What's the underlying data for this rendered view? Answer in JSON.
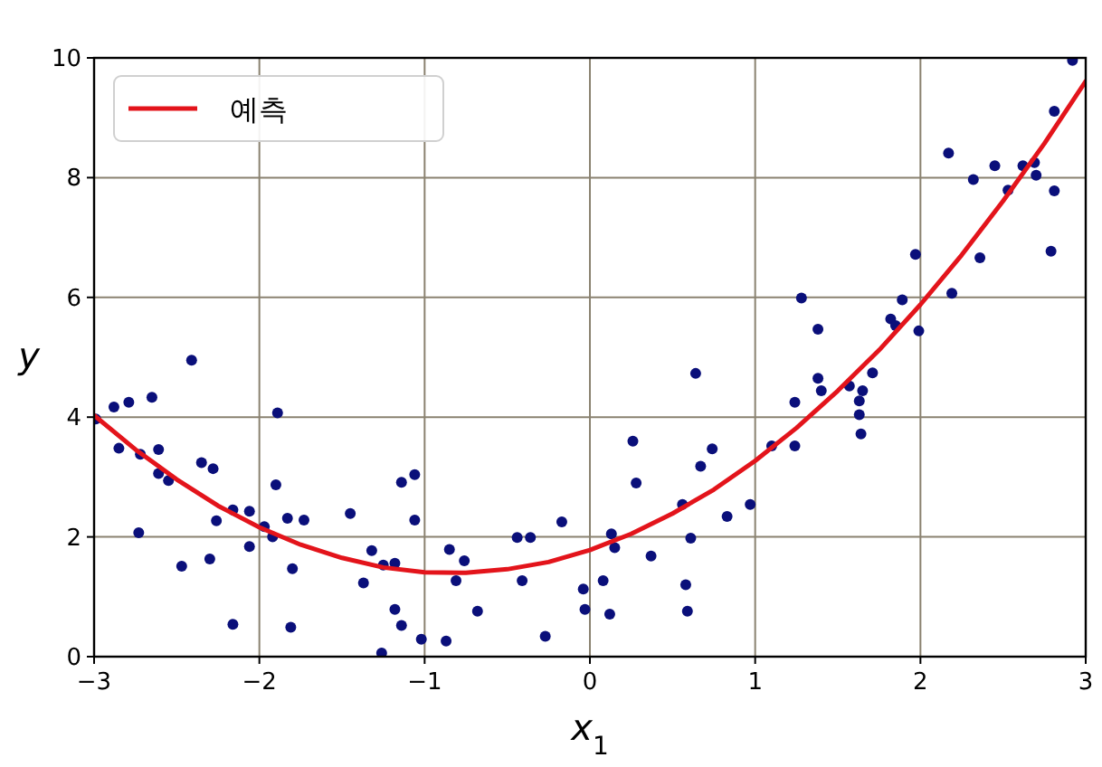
{
  "chart_data": {
    "type": "scatter",
    "xlabel": "x$_{1}$",
    "ylabel": "y",
    "xlim": [
      -3,
      3
    ],
    "ylim": [
      0,
      10
    ],
    "xticks": [
      {
        "value": -3,
        "label": "−3"
      },
      {
        "value": -2,
        "label": "−2"
      },
      {
        "value": -1,
        "label": "−1"
      },
      0,
      1,
      2,
      3
    ],
    "yticks": [
      0,
      2,
      4,
      6,
      8,
      10
    ],
    "grid": true,
    "legend": "top left",
    "series": [
      {
        "color": "#0a0f7a",
        "marker": "circle",
        "x": [
          -2.99,
          -2.88,
          -2.79,
          -2.65,
          -2.41,
          -1.89,
          -2.85,
          -2.72,
          -2.61,
          -2.61,
          -2.55,
          -2.73,
          -2.35,
          -2.28,
          -2.26,
          -2.47,
          -2.3,
          -2.16,
          -2.06,
          -2.16,
          -2.06,
          -1.9,
          -1.97,
          -1.92,
          -1.83,
          -1.8,
          -1.73,
          -1.81,
          -1.45,
          -1.37,
          -1.32,
          -1.25,
          -1.18,
          -1.18,
          -1.14,
          -1.26,
          -1.14,
          -1.06,
          -1.06,
          -1.02,
          -0.87,
          -0.85,
          -0.81,
          -0.76,
          -0.68,
          -0.44,
          -0.36,
          -0.41,
          -0.27,
          -0.17,
          -0.04,
          -0.03,
          0.08,
          0.12,
          0.13,
          0.15,
          0.26,
          0.28,
          0.37,
          0.64,
          0.56,
          0.61,
          0.58,
          0.59,
          0.67,
          0.74,
          0.83,
          0.97,
          1.1,
          1.24,
          1.24,
          1.28,
          1.38,
          1.38,
          1.4,
          1.57,
          1.63,
          1.63,
          1.64,
          1.65,
          1.71,
          1.82,
          1.85,
          1.89,
          1.99,
          1.97,
          2.19,
          2.17,
          2.32,
          2.36,
          2.45,
          2.53,
          2.62,
          2.69,
          2.7,
          2.81,
          2.79,
          2.81,
          2.92
        ],
        "values": [
          3.97,
          4.17,
          4.25,
          4.33,
          4.95,
          4.07,
          3.48,
          3.38,
          3.46,
          3.06,
          2.94,
          2.07,
          3.24,
          3.14,
          2.27,
          1.51,
          1.63,
          2.45,
          2.43,
          0.54,
          1.84,
          2.87,
          2.17,
          2.0,
          2.31,
          1.47,
          2.28,
          0.49,
          2.39,
          1.23,
          1.77,
          1.53,
          1.56,
          0.79,
          0.52,
          0.06,
          2.91,
          3.04,
          2.28,
          0.29,
          0.26,
          1.79,
          1.27,
          1.6,
          0.76,
          1.99,
          1.99,
          1.27,
          0.34,
          2.25,
          1.13,
          0.79,
          1.27,
          0.71,
          2.05,
          1.82,
          3.6,
          2.9,
          1.68,
          4.73,
          2.54,
          1.98,
          1.2,
          0.76,
          3.18,
          3.47,
          2.34,
          2.54,
          3.52,
          3.52,
          4.25,
          5.99,
          5.47,
          4.65,
          4.44,
          4.52,
          4.27,
          4.04,
          3.72,
          4.44,
          4.74,
          5.64,
          5.53,
          5.96,
          5.44,
          6.72,
          6.07,
          8.41,
          7.97,
          6.66,
          8.2,
          7.79,
          8.2,
          8.25,
          8.04,
          7.78,
          6.77,
          9.11,
          9.96
        ]
      },
      {
        "type": "line",
        "name": "예측",
        "color": "#e3141b",
        "marker": "none",
        "line_style": "solid",
        "x": [
          -3,
          -2.75,
          -2.5,
          -2.25,
          -2,
          -1.75,
          -1.5,
          -1.25,
          -1,
          -0.75,
          -0.5,
          -0.25,
          0,
          0.25,
          0.5,
          0.75,
          1,
          1.25,
          1.5,
          1.75,
          2,
          2.25,
          2.5,
          2.75,
          3
        ],
        "values": [
          4.03,
          3.46,
          2.96,
          2.52,
          2.16,
          1.87,
          1.65,
          1.49,
          1.41,
          1.4,
          1.46,
          1.58,
          1.78,
          2.05,
          2.39,
          2.79,
          3.27,
          3.82,
          4.44,
          5.12,
          5.88,
          6.71,
          7.61,
          8.57,
          9.61
        ]
      }
    ]
  }
}
